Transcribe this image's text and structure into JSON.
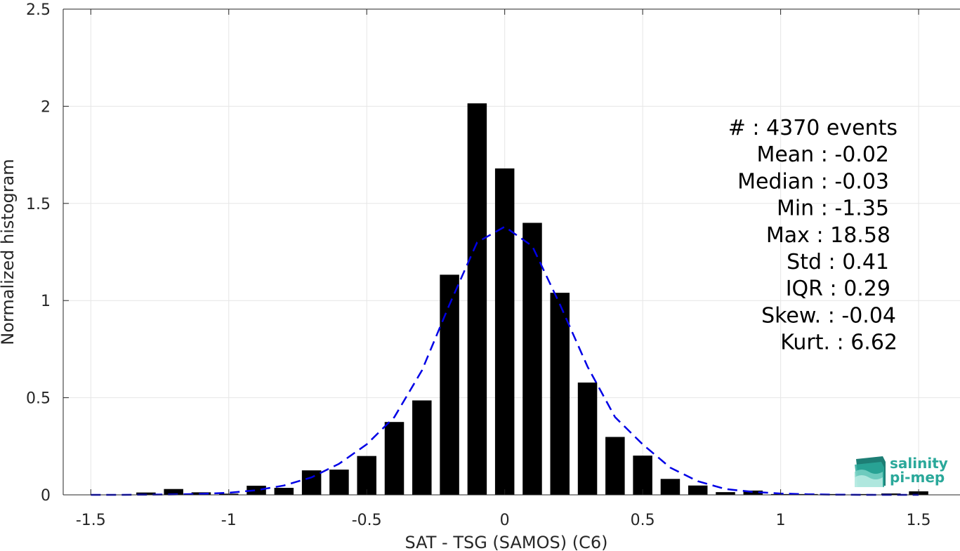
{
  "chart_data": {
    "type": "bar",
    "title": "",
    "xlabel": "SAT - TSG (SAMOS) (C6)",
    "ylabel": "Normalized histogram",
    "xlim": [
      -1.6,
      1.65
    ],
    "ylim": [
      0,
      2.5
    ],
    "xticks": [
      -1.5,
      -1,
      -0.5,
      0,
      0.5,
      1,
      1.5
    ],
    "xtick_labels": [
      "-1.5",
      "-1",
      "-0.5",
      "0",
      "0.5",
      "1",
      "1.5"
    ],
    "yticks": [
      0,
      0.5,
      1,
      1.5,
      2,
      2.5
    ],
    "ytick_labels": [
      "0",
      "0.5",
      "1",
      "1.5",
      "2",
      "2.5"
    ],
    "grid": true,
    "bin_width": 0.1,
    "bar_width": 0.07,
    "bar_color": "#000000",
    "x": [
      -1.5,
      -1.4,
      -1.3,
      -1.2,
      -1.1,
      -1.0,
      -0.9,
      -0.8,
      -0.7,
      -0.6,
      -0.5,
      -0.4,
      -0.3,
      -0.2,
      -0.1,
      0.0,
      0.1,
      0.2,
      0.3,
      0.4,
      0.5,
      0.6,
      0.7,
      0.8,
      0.9,
      1.0,
      1.1,
      1.2,
      1.3,
      1.4,
      1.5
    ],
    "values": [
      0.0,
      0.0,
      0.012,
      0.03,
      0.013,
      0.006,
      0.047,
      0.036,
      0.126,
      0.13,
      0.2,
      0.375,
      0.486,
      1.133,
      2.015,
      1.68,
      1.4,
      1.04,
      0.578,
      0.298,
      0.202,
      0.082,
      0.048,
      0.014,
      0.022,
      0.004,
      0.004,
      0.004,
      0.004,
      0.007,
      0.018
    ],
    "fit": {
      "style": "dashed",
      "color": "#0000e6",
      "x": [
        -1.5,
        -1.4,
        -1.3,
        -1.2,
        -1.1,
        -1.0,
        -0.9,
        -0.8,
        -0.7,
        -0.6,
        -0.5,
        -0.4,
        -0.3,
        -0.2,
        -0.1,
        0.0,
        0.1,
        0.2,
        0.3,
        0.4,
        0.5,
        0.6,
        0.7,
        0.8,
        0.9,
        1.0,
        1.1,
        1.2,
        1.3,
        1.4,
        1.5
      ],
      "y": [
        0.0,
        0.0,
        0.001,
        0.002,
        0.005,
        0.011,
        0.024,
        0.048,
        0.09,
        0.16,
        0.26,
        0.4,
        0.64,
        0.98,
        1.3,
        1.38,
        1.28,
        0.98,
        0.66,
        0.4,
        0.26,
        0.14,
        0.07,
        0.03,
        0.015,
        0.007,
        0.003,
        0.001,
        0.0,
        0.0,
        0.0
      ]
    }
  },
  "stats": [
    {
      "label": "#  : 4370 events",
      "align_x": 1278
    },
    {
      "label": "Mean : -0.02",
      "align_x": 1266
    },
    {
      "label": "Median : -0.03",
      "align_x": 1266
    },
    {
      "label": "Min : -1.35",
      "align_x": 1266
    },
    {
      "label": "Max : 18.58",
      "align_x": 1268
    },
    {
      "label": "Std : 0.41",
      "align_x": 1266
    },
    {
      "label": "IQR : 0.29",
      "align_x": 1268
    },
    {
      "label": "Skew. : -0.04",
      "align_x": 1276
    },
    {
      "label": "Kurt. : 6.62",
      "align_x": 1278
    }
  ],
  "logo": {
    "line1": "salinity",
    "line2": "pi-mep",
    "color": "#2aa89a"
  }
}
